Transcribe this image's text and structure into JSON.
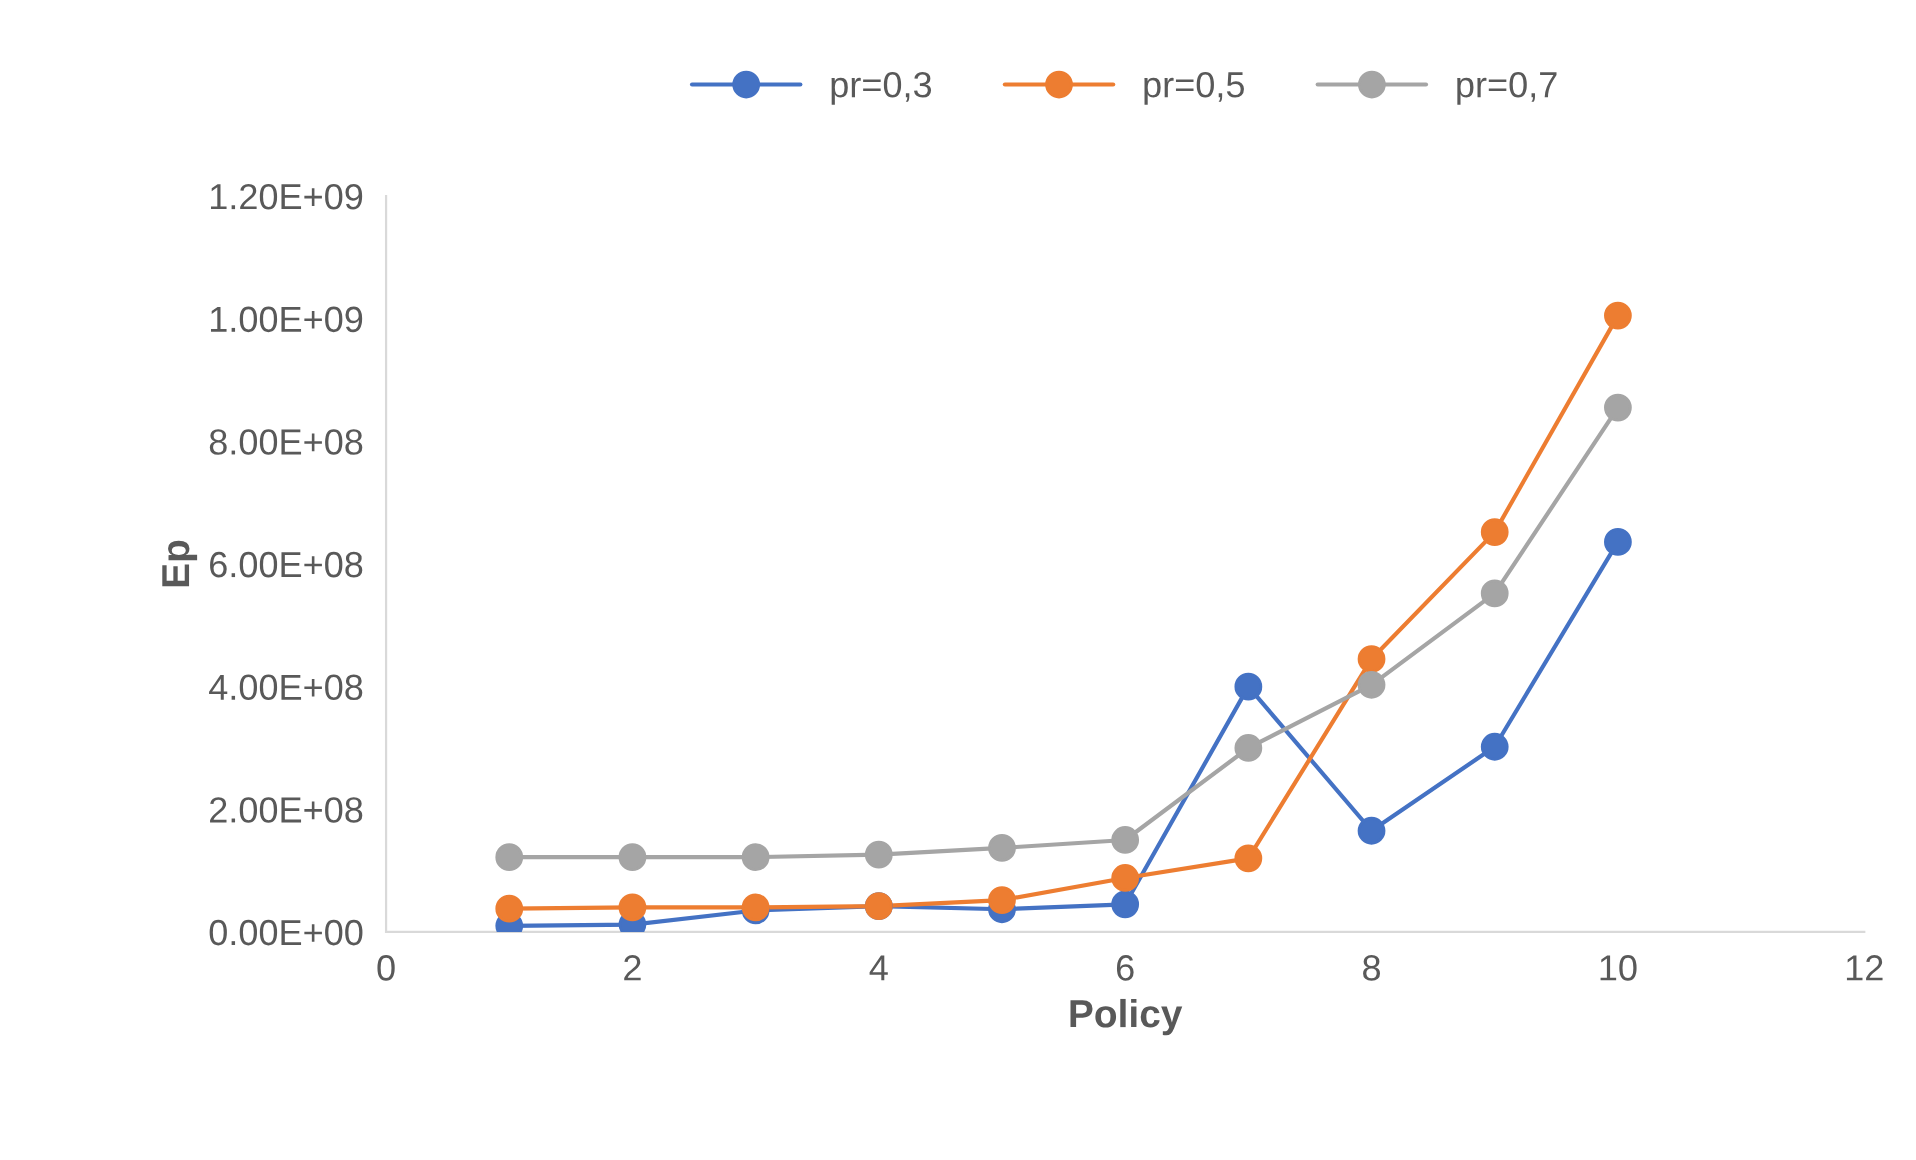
{
  "chart_data": {
    "type": "line",
    "xlabel": "Policy",
    "ylabel": "Ep",
    "x": [
      1,
      2,
      3,
      4,
      5,
      6,
      7,
      8,
      9,
      10
    ],
    "series": [
      {
        "name": "pr=0,3",
        "color": "#4472c4",
        "values": [
          10000000.0,
          12000000.0,
          35000000.0,
          42000000.0,
          37000000.0,
          45000000.0,
          400000000.0,
          165000000.0,
          302000000.0,
          636000000.0
        ]
      },
      {
        "name": "pr=0,5",
        "color": "#ed7d31",
        "values": [
          38000000.0,
          40000000.0,
          40000000.0,
          42000000.0,
          52000000.0,
          88000000.0,
          120000000.0,
          445000000.0,
          652000000.0,
          1005000000.0
        ]
      },
      {
        "name": "pr=0,7",
        "color": "#a5a5a5",
        "values": [
          122000000.0,
          122000000.0,
          122000000.0,
          126000000.0,
          137000000.0,
          150000000.0,
          300000000.0,
          403000000.0,
          552000000.0,
          855000000.0
        ]
      }
    ],
    "xlim": [
      0,
      12
    ],
    "xticks": [
      0,
      2,
      4,
      6,
      8,
      10,
      12
    ],
    "ylim": [
      0,
      1200000000.0
    ],
    "yticks": [
      {
        "value": 0,
        "label": "0.00E+00"
      },
      {
        "value": 200000000.0,
        "label": "2.00E+08"
      },
      {
        "value": 400000000.0,
        "label": "4.00E+08"
      },
      {
        "value": 600000000.0,
        "label": "6.00E+08"
      },
      {
        "value": 800000000.0,
        "label": "8.00E+08"
      },
      {
        "value": 1000000000.0,
        "label": "1.00E+09"
      },
      {
        "value": 1200000000.0,
        "label": "1.20E+09"
      }
    ],
    "grid": false,
    "legend": "top",
    "marker": "circle",
    "line_style": "solid"
  }
}
